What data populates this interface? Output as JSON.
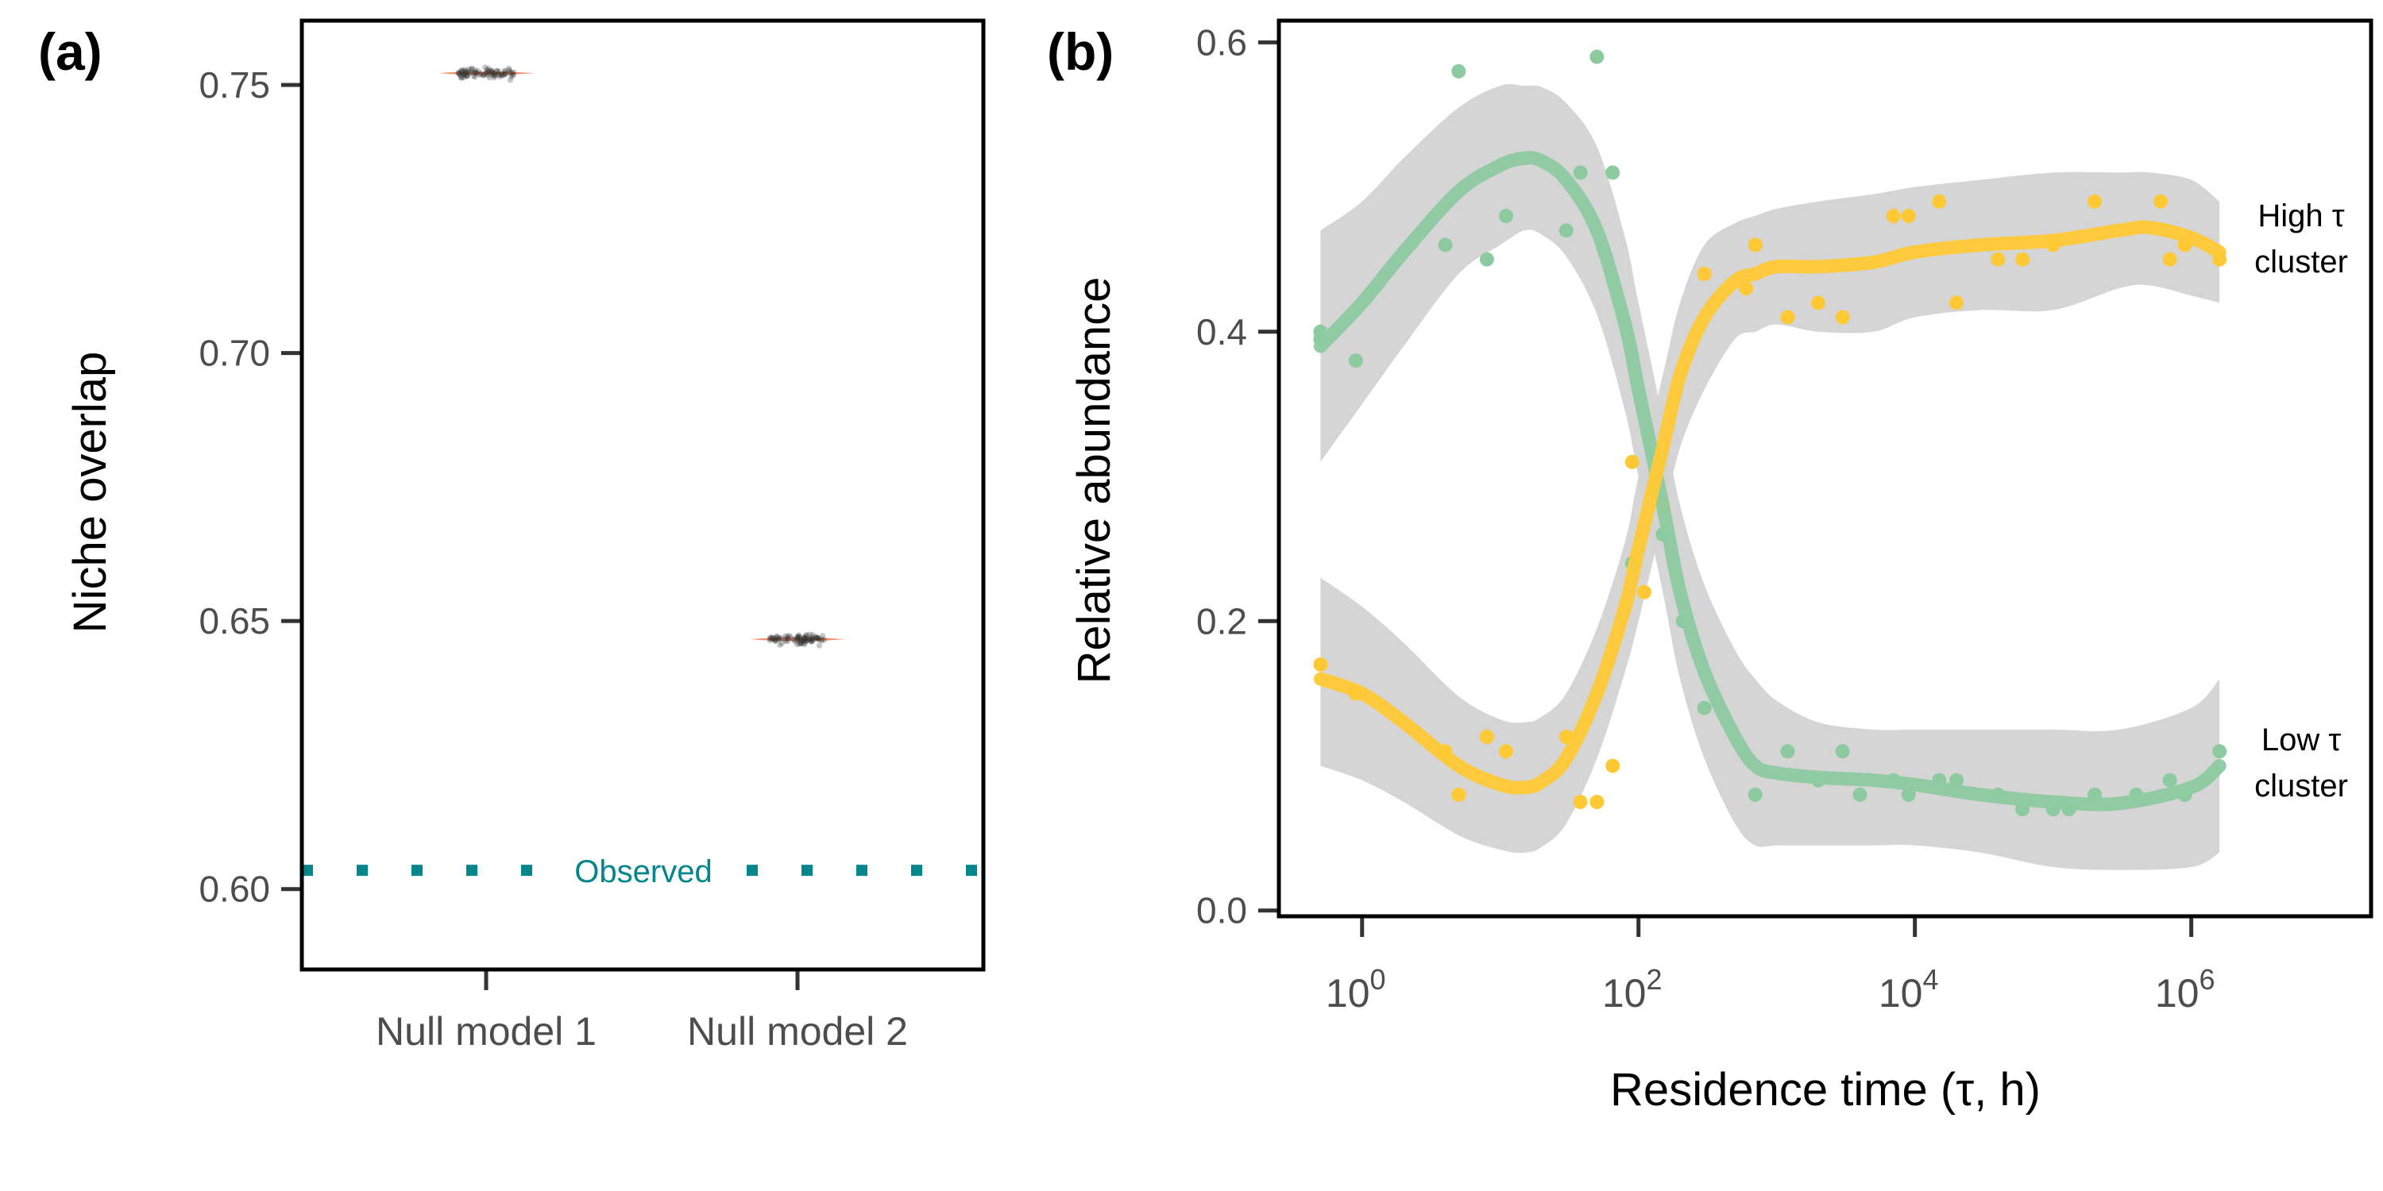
{
  "chart_data": [
    {
      "panel_label": "(a)",
      "type": "scatter",
      "xlabel": "",
      "ylabel": "Niche overlap",
      "categories": [
        "Null model 1",
        "Null model 2"
      ],
      "ylim": [
        0.585,
        0.762
      ],
      "yticks": [
        0.6,
        0.65,
        0.7,
        0.75
      ],
      "ytick_labels": [
        "0.60",
        "0.65",
        "0.70",
        "0.75"
      ],
      "series": [
        {
          "category": "Null model 1",
          "mean": 0.7522,
          "min": 0.7508,
          "max": 0.7535
        },
        {
          "category": "Null model 2",
          "mean": 0.6466,
          "min": 0.6452,
          "max": 0.648
        }
      ],
      "observed": {
        "value": 0.6035,
        "label": "Observed",
        "color": "#00868B"
      },
      "colors": {
        "violin": "#F4845F",
        "points": "#333333"
      },
      "grid": false,
      "legend": "none"
    },
    {
      "panel_label": "(b)",
      "type": "scatter",
      "xlabel": "Residence time (τ, h)",
      "ylabel": "Relative abundance",
      "x_scale": "log10",
      "xlim": [
        0.25,
        20000000
      ],
      "ylim": [
        -0.004,
        0.615
      ],
      "xticks": [
        1,
        100,
        10000,
        1000000
      ],
      "xtick_exponents": [
        "0",
        "2",
        "4",
        "6"
      ],
      "xtick_base": "10",
      "yticks": [
        0.0,
        0.2,
        0.4,
        0.6
      ],
      "ytick_labels": [
        "0.0",
        "0.2",
        "0.4",
        "0.6"
      ],
      "grid": false,
      "legend": "none",
      "series": [
        {
          "key": "low",
          "label_lines": [
            "Low τ",
            "cluster"
          ],
          "color": "#8DCAA0",
          "points": [
            [
              0.5,
              0.4
            ],
            [
              0.5,
              0.395
            ],
            [
              0.9,
              0.38
            ],
            [
              4,
              0.46
            ],
            [
              5,
              0.58
            ],
            [
              8,
              0.45
            ],
            [
              11,
              0.48
            ],
            [
              30,
              0.47
            ],
            [
              38,
              0.51
            ],
            [
              50,
              0.59
            ],
            [
              65,
              0.51
            ],
            [
              90,
              0.24
            ],
            [
              130,
              0.29
            ],
            [
              150,
              0.26
            ],
            [
              210,
              0.2
            ],
            [
              300,
              0.14
            ],
            [
              700,
              0.08
            ],
            [
              1200,
              0.11
            ],
            [
              2000,
              0.09
            ],
            [
              3000,
              0.11
            ],
            [
              4000,
              0.08
            ],
            [
              7000,
              0.09
            ],
            [
              9000,
              0.08
            ],
            [
              15000,
              0.09
            ],
            [
              20000,
              0.09
            ],
            [
              40000,
              0.08
            ],
            [
              60000,
              0.07
            ],
            [
              100000,
              0.07
            ],
            [
              130000,
              0.07
            ],
            [
              200000,
              0.08
            ],
            [
              400000,
              0.08
            ],
            [
              700000,
              0.09
            ],
            [
              900000,
              0.08
            ],
            [
              1600000,
              0.11
            ]
          ],
          "smooth_x": [
            0.5,
            1,
            2,
            5,
            10,
            15,
            20,
            30,
            50,
            80,
            100,
            150,
            200,
            300,
            500,
            700,
            1000,
            2000,
            5000,
            10000,
            30000,
            100000,
            300000,
            1000000,
            1600000
          ],
          "smooth_y": [
            0.39,
            0.42,
            0.455,
            0.497,
            0.515,
            0.52,
            0.518,
            0.505,
            0.47,
            0.405,
            0.36,
            0.28,
            0.22,
            0.165,
            0.12,
            0.1,
            0.095,
            0.092,
            0.09,
            0.087,
            0.08,
            0.075,
            0.074,
            0.085,
            0.1
          ],
          "band_upper": [
            0.47,
            0.49,
            0.52,
            0.555,
            0.57,
            0.57,
            0.569,
            0.558,
            0.528,
            0.465,
            0.42,
            0.34,
            0.28,
            0.225,
            0.18,
            0.16,
            0.145,
            0.13,
            0.125,
            0.125,
            0.125,
            0.125,
            0.125,
            0.14,
            0.16
          ],
          "band_lower": [
            0.31,
            0.35,
            0.39,
            0.44,
            0.46,
            0.47,
            0.467,
            0.452,
            0.412,
            0.345,
            0.3,
            0.22,
            0.16,
            0.105,
            0.06,
            0.045,
            0.045,
            0.045,
            0.045,
            0.045,
            0.04,
            0.03,
            0.028,
            0.03,
            0.04
          ]
        },
        {
          "key": "high",
          "label_lines": [
            "High τ",
            "cluster"
          ],
          "color": "#FFC935",
          "points": [
            [
              0.5,
              0.17
            ],
            [
              0.9,
              0.15
            ],
            [
              4,
              0.11
            ],
            [
              5,
              0.08
            ],
            [
              8,
              0.12
            ],
            [
              11,
              0.11
            ],
            [
              30,
              0.12
            ],
            [
              38,
              0.075
            ],
            [
              50,
              0.075
            ],
            [
              65,
              0.1
            ],
            [
              90,
              0.31
            ],
            [
              110,
              0.22
            ],
            [
              150,
              0.28
            ],
            [
              300,
              0.44
            ],
            [
              600,
              0.43
            ],
            [
              700,
              0.46
            ],
            [
              1200,
              0.41
            ],
            [
              2000,
              0.42
            ],
            [
              3000,
              0.41
            ],
            [
              7000,
              0.48
            ],
            [
              9000,
              0.48
            ],
            [
              15000,
              0.49
            ],
            [
              20000,
              0.42
            ],
            [
              40000,
              0.45
            ],
            [
              60000,
              0.45
            ],
            [
              100000,
              0.46
            ],
            [
              200000,
              0.49
            ],
            [
              600000,
              0.49
            ],
            [
              700000,
              0.45
            ],
            [
              900000,
              0.46
            ],
            [
              1600000,
              0.45
            ]
          ],
          "smooth_x": [
            0.5,
            1,
            2,
            5,
            10,
            15,
            20,
            30,
            50,
            80,
            100,
            150,
            200,
            300,
            500,
            700,
            1000,
            2000,
            5000,
            10000,
            30000,
            100000,
            300000,
            500000,
            1000000,
            1600000
          ],
          "smooth_y": [
            0.16,
            0.15,
            0.13,
            0.1,
            0.087,
            0.085,
            0.089,
            0.105,
            0.15,
            0.21,
            0.25,
            0.32,
            0.37,
            0.41,
            0.435,
            0.44,
            0.445,
            0.445,
            0.448,
            0.455,
            0.46,
            0.463,
            0.47,
            0.472,
            0.465,
            0.455
          ],
          "band_upper": [
            0.23,
            0.21,
            0.185,
            0.148,
            0.132,
            0.13,
            0.134,
            0.15,
            0.195,
            0.255,
            0.3,
            0.37,
            0.42,
            0.46,
            0.475,
            0.48,
            0.485,
            0.49,
            0.495,
            0.5,
            0.505,
            0.51,
            0.51,
            0.51,
            0.505,
            0.49
          ],
          "band_lower": [
            0.1,
            0.09,
            0.075,
            0.052,
            0.042,
            0.04,
            0.044,
            0.06,
            0.105,
            0.165,
            0.2,
            0.27,
            0.32,
            0.36,
            0.395,
            0.4,
            0.405,
            0.4,
            0.4,
            0.41,
            0.415,
            0.415,
            0.43,
            0.432,
            0.425,
            0.42
          ]
        }
      ],
      "band_color": "#D3D3D3"
    }
  ]
}
